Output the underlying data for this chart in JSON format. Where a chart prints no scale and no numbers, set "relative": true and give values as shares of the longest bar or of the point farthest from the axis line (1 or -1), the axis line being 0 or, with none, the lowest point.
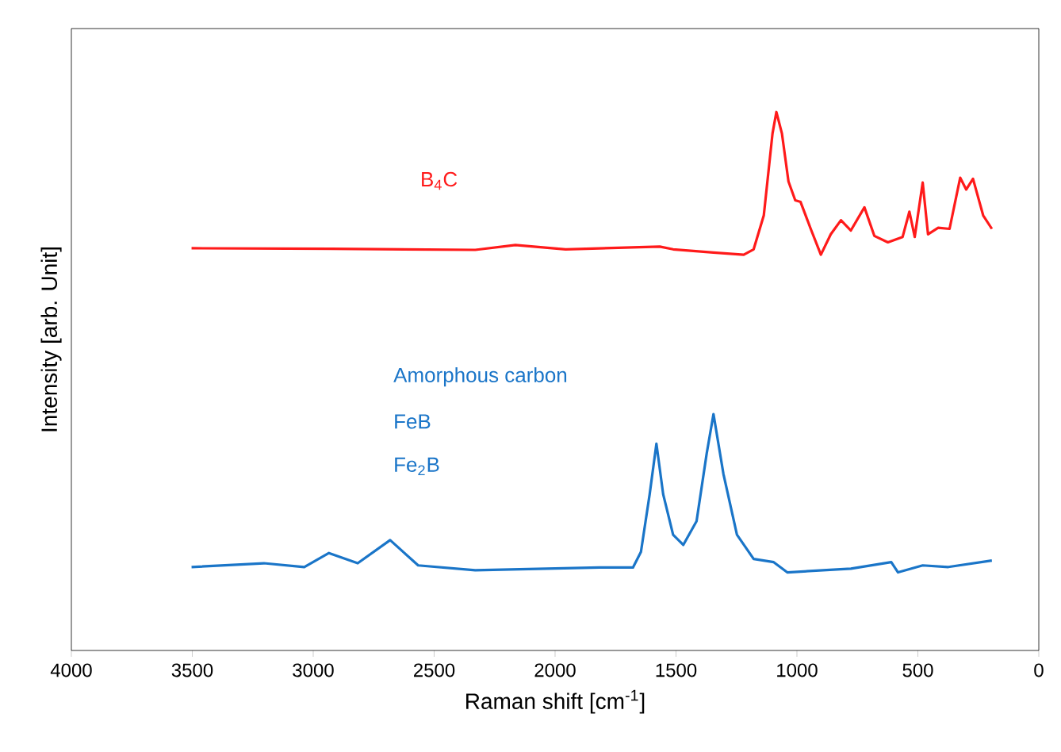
{
  "chart_data": {
    "type": "line",
    "relative": true,
    "xlabel": "Raman shift [cm$^{-1}$]",
    "ylabel": "Intensity [arb. Unit]",
    "xlim": [
      4000,
      0
    ],
    "xticks": [
      4000,
      3500,
      3000,
      2500,
      2000,
      1500,
      1000,
      500,
      0
    ],
    "tick_labels": "x",
    "line_style": "solid",
    "annotations": [
      "FeB",
      "Fe$_{2}$B"
    ],
    "series": [
      {
        "name": "B$_{4}$C",
        "color": "#ff1a1a",
        "x": [
          3503,
          2926,
          2330,
          2164,
          1956,
          1567,
          1512,
          1345,
          1220,
          1179,
          1137,
          1101,
          1085,
          1062,
          1035,
          1007,
          985,
          943,
          901,
          860,
          818,
          777,
          721,
          680,
          624,
          563,
          535,
          513,
          480,
          458,
          416,
          369,
          325,
          300,
          272,
          230,
          194
        ],
        "values": [
          0.747,
          0.746,
          0.744,
          0.753,
          0.745,
          0.75,
          0.745,
          0.739,
          0.735,
          0.745,
          0.808,
          0.96,
          1.0,
          0.96,
          0.871,
          0.836,
          0.833,
          0.783,
          0.735,
          0.773,
          0.799,
          0.78,
          0.823,
          0.77,
          0.758,
          0.768,
          0.815,
          0.768,
          0.869,
          0.773,
          0.785,
          0.783,
          0.878,
          0.856,
          0.876,
          0.808,
          0.783
        ]
      },
      {
        "name": "Amorphous carbon",
        "color": "#1a75c8",
        "x": [
          3503,
          3204,
          3037,
          2935,
          2816,
          2682,
          2566,
          2330,
          1817,
          1678,
          1645,
          1609,
          1581,
          1553,
          1512,
          1470,
          1415,
          1373,
          1345,
          1304,
          1248,
          1179,
          1096,
          1040,
          777,
          610,
          582,
          480,
          374,
          194
        ],
        "values": [
          0.155,
          0.162,
          0.155,
          0.181,
          0.162,
          0.205,
          0.158,
          0.149,
          0.154,
          0.154,
          0.183,
          0.29,
          0.384,
          0.29,
          0.215,
          0.196,
          0.24,
          0.366,
          0.439,
          0.328,
          0.215,
          0.17,
          0.164,
          0.145,
          0.152,
          0.164,
          0.145,
          0.158,
          0.155,
          0.167
        ]
      }
    ]
  }
}
